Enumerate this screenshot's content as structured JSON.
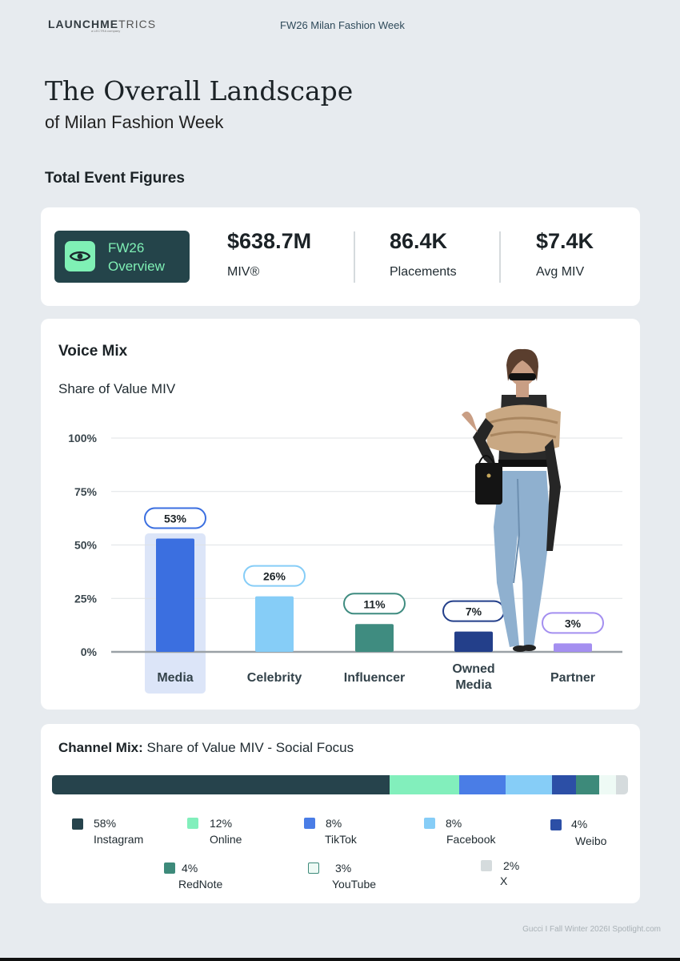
{
  "header": {
    "logo_main": "LAUNCHME",
    "logo_thin": "TRICS",
    "logo_sub": "a LECTRA company",
    "event": "FW26 Milan Fashion Week"
  },
  "title": {
    "line1": "The Overall Landscape",
    "line2": "of Milan Fashion Week"
  },
  "section_title": "Total Event Figures",
  "kpis": {
    "badge_line1": "FW26",
    "badge_line2": "Overview",
    "badge_icon": "eye-icon",
    "miv_value": "$638.7M",
    "miv_label": "MIV®",
    "placements_value": "86.4K",
    "placements_label": "Placements",
    "avg_value": "$7.4K",
    "avg_label": "Avg MIV"
  },
  "voice_mix": {
    "title": "Voice Mix",
    "subtitle": "Share of Value MIV"
  },
  "chart_data": [
    {
      "type": "bar",
      "title": "Voice Mix",
      "ylabel": "Share of Value MIV",
      "categories": [
        "Media",
        "Celebrity",
        "Influencer",
        "Owned Media",
        "Partner"
      ],
      "category_lines": [
        [
          "Media"
        ],
        [
          "Celebrity"
        ],
        [
          "Influencer"
        ],
        [
          "Owned",
          "Media"
        ],
        [
          "Partner"
        ]
      ],
      "values": [
        53,
        26,
        11,
        7,
        3
      ],
      "bar_heights": [
        53,
        26,
        13,
        9.5,
        4
      ],
      "labels": [
        "53%",
        "26%",
        "11%",
        "7%",
        "3%"
      ],
      "colors": [
        "#3b6fe0",
        "#86cdf7",
        "#3f8c80",
        "#233f8a",
        "#a48ff0"
      ],
      "pill_colors": [
        "#3b6fe0",
        "#86cdf7",
        "#3f8c80",
        "#233f8a",
        "#a48ff0"
      ],
      "highlight": "Media",
      "yticks": [
        0,
        25,
        50,
        75,
        100
      ],
      "ytick_labels": [
        "0%",
        "25%",
        "50%",
        "75%",
        "100%"
      ],
      "ylim": [
        0,
        100
      ],
      "grid": true
    },
    {
      "type": "bar",
      "stacked": true,
      "title": "Channel Mix: Share of Value MIV - Social Focus",
      "categories": [
        "Instagram",
        "Online",
        "TikTok",
        "Facebook",
        "Weibo",
        "RedNote",
        "YouTube",
        "X"
      ],
      "values": [
        58,
        12,
        8,
        8,
        4,
        4,
        3,
        2
      ],
      "labels": [
        "58%",
        "12%",
        "8%",
        "8%",
        "4%",
        "4%",
        "3%",
        "2%"
      ],
      "colors": [
        "#26434c",
        "#82efbc",
        "#4a7de6",
        "#86cdf7",
        "#2c4fa6",
        "#3d8a7a",
        "#eefaf5",
        "#d5dbdd"
      ]
    }
  ],
  "channel_mix": {
    "title_bold": "Channel Mix:",
    "title_rest": " Share of Value MIV - Social Focus"
  },
  "footer": "Gucci I Fall Winter 2026I Spotlight.com"
}
